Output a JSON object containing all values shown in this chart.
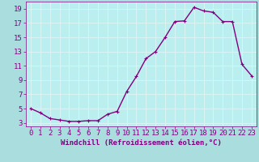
{
  "xlabel": "Windchill (Refroidissement éolien,°C)",
  "x_values": [
    0,
    1,
    2,
    3,
    4,
    5,
    6,
    7,
    8,
    9,
    10,
    11,
    12,
    13,
    14,
    15,
    16,
    17,
    18,
    19,
    20,
    21,
    22,
    23
  ],
  "y_values": [
    5.0,
    4.4,
    3.6,
    3.4,
    3.2,
    3.2,
    3.3,
    3.3,
    4.2,
    4.6,
    7.4,
    9.5,
    12.0,
    13.0,
    15.0,
    17.2,
    17.3,
    19.2,
    18.7,
    18.5,
    17.2,
    17.2,
    11.2,
    9.6
  ],
  "line_color": "#800080",
  "marker_color": "#800080",
  "background_color": "#aadddd",
  "plot_bg_color": "#bbeeee",
  "grid_color": "#ddf5f5",
  "tick_color": "#800080",
  "label_color": "#800080",
  "xlim": [
    -0.5,
    23.5
  ],
  "ylim": [
    2.5,
    20.0
  ],
  "yticks": [
    3,
    5,
    7,
    9,
    11,
    13,
    15,
    17,
    19
  ],
  "xticks": [
    0,
    1,
    2,
    3,
    4,
    5,
    6,
    7,
    8,
    9,
    10,
    11,
    12,
    13,
    14,
    15,
    16,
    17,
    18,
    19,
    20,
    21,
    22,
    23
  ],
  "xlabel_fontsize": 6.5,
  "tick_fontsize": 6.5,
  "line_width": 1.0,
  "marker_size": 3.5
}
